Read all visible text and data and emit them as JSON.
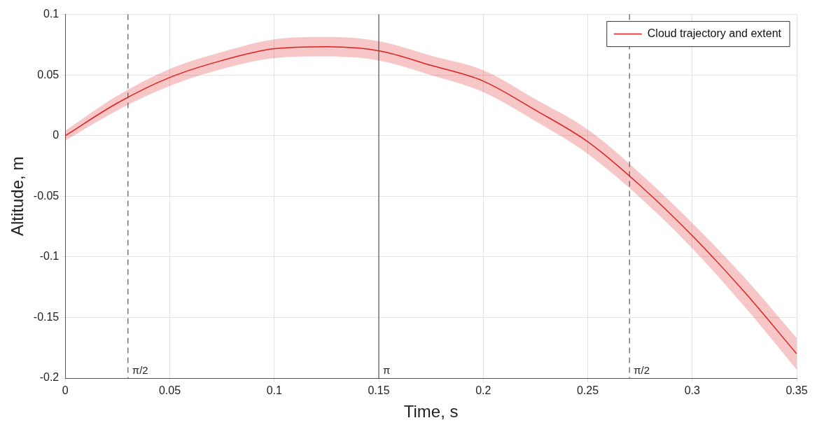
{
  "chart_data": {
    "type": "line",
    "xlabel": "Time, s",
    "ylabel": "Altitude, m",
    "x": [
      0,
      0.025,
      0.05,
      0.075,
      0.1,
      0.125,
      0.15,
      0.175,
      0.2,
      0.225,
      0.25,
      0.275,
      0.3,
      0.325,
      0.35
    ],
    "series": [
      {
        "name": "Cloud trajectory and extent",
        "color": "#e02020",
        "values": [
          0,
          0.027,
          0.048,
          0.062,
          0.0717,
          0.0734,
          0.07,
          0.058,
          0.045,
          0.021,
          -0.005,
          -0.041,
          -0.0825,
          -0.129,
          -0.18
        ],
        "lower": [
          -0.004,
          0.021,
          0.041,
          0.055,
          0.064,
          0.0654,
          0.062,
          0.05,
          0.036,
          0.012,
          -0.015,
          -0.051,
          -0.093,
          -0.141,
          -0.193
        ],
        "upper": [
          0.004,
          0.033,
          0.055,
          0.069,
          0.0794,
          0.0814,
          0.078,
          0.066,
          0.054,
          0.03,
          0.005,
          -0.031,
          -0.072,
          -0.117,
          -0.167
        ]
      }
    ],
    "xlim": [
      0,
      0.35
    ],
    "xticks": [
      0,
      0.05,
      0.1,
      0.15,
      0.2,
      0.25,
      0.3,
      0.35
    ],
    "ylim": [
      -0.2,
      0.1
    ],
    "yticks": [
      -0.2,
      -0.15,
      -0.1,
      -0.05,
      0,
      0.05,
      0.1
    ],
    "ref_lines": [
      {
        "axis": "x",
        "value": 0.03,
        "label": "π/2",
        "color": "#555555",
        "line_style": "dashed"
      },
      {
        "axis": "x",
        "value": 0.15,
        "label": "π",
        "color": "#555555",
        "line_style": "solid"
      },
      {
        "axis": "x",
        "value": 0.27,
        "label": "π/2",
        "color": "#555555",
        "line_style": "dashed"
      }
    ],
    "grid": true,
    "legend": "top right",
    "marker": "none",
    "line_style": "solid"
  }
}
